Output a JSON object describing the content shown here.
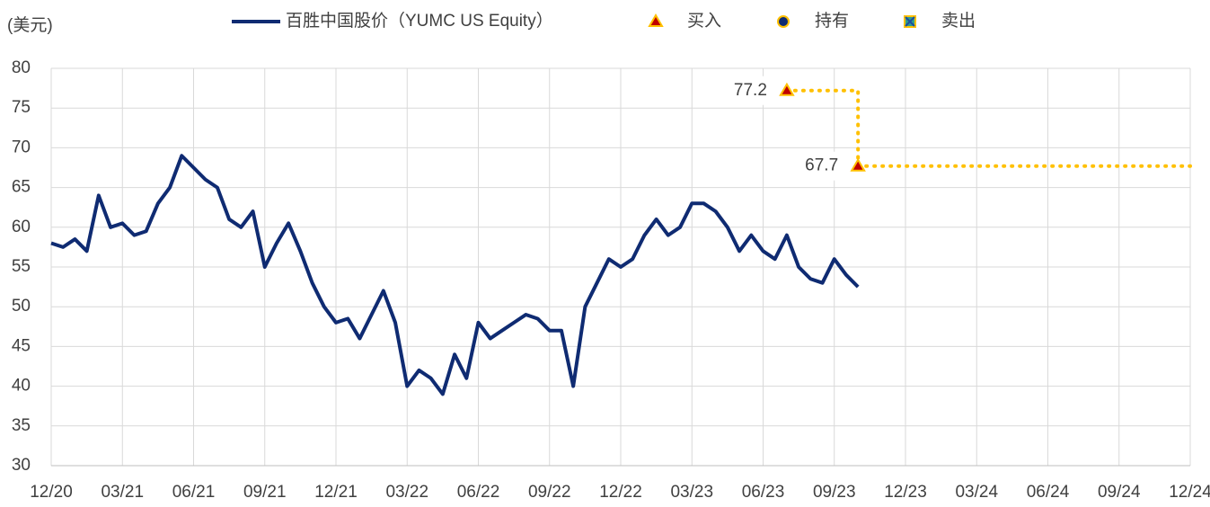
{
  "chart_data": {
    "type": "line",
    "unit_label": "(美元)",
    "categories": [
      "12/20",
      null,
      null,
      null,
      null,
      null,
      "03/21",
      null,
      null,
      null,
      null,
      null,
      "06/21",
      null,
      null,
      null,
      null,
      null,
      "09/21",
      null,
      null,
      null,
      null,
      null,
      "12/21",
      null,
      null,
      null,
      null,
      null,
      "03/22",
      null,
      null,
      null,
      null,
      null,
      "06/22",
      null,
      null,
      null,
      null,
      null,
      "09/22",
      null,
      null,
      null,
      null,
      null,
      "12/22",
      null,
      null,
      null,
      null,
      null,
      "03/23",
      null,
      null,
      null,
      null,
      null,
      "06/23",
      null,
      null,
      null,
      null,
      null,
      "09/23",
      null,
      null,
      null,
      null,
      null,
      "12/23",
      null,
      null,
      null,
      null,
      null,
      "03/24",
      null,
      null,
      null,
      null,
      null,
      "06/24",
      null,
      null,
      null,
      null,
      null,
      "09/24",
      null,
      null,
      null,
      null,
      null,
      "12/24"
    ],
    "series": [
      {
        "name": "百胜中国股价（YUMC US Equity）",
        "color": "#0f2b72",
        "values": [
          58,
          57.5,
          58.5,
          57,
          64,
          60,
          60.5,
          59,
          59.5,
          63,
          65,
          69,
          67.5,
          66,
          65,
          61,
          60,
          62,
          55,
          58,
          60.5,
          57,
          53,
          50,
          48,
          48.5,
          46,
          49,
          52,
          48,
          40,
          42,
          41,
          39,
          44,
          41,
          48,
          46,
          47,
          48,
          49,
          48.5,
          47,
          47,
          40,
          50,
          53,
          56,
          55,
          56,
          59,
          61,
          59,
          60,
          63,
          63,
          62,
          60,
          57,
          59,
          57,
          56,
          59,
          55,
          53.5,
          53,
          56,
          54,
          52.5,
          null,
          null,
          null,
          null,
          null,
          null,
          null,
          null,
          null,
          null,
          null,
          null,
          null,
          null,
          null,
          null,
          null,
          null,
          null,
          null,
          null,
          null,
          null,
          null,
          null,
          null,
          null,
          null
        ]
      },
      {
        "name": "买入",
        "color": "#c00000",
        "marker": "triangle",
        "values": [
          null,
          null,
          null,
          null,
          null,
          null,
          null,
          null,
          null,
          null,
          null,
          null,
          null,
          null,
          null,
          null,
          null,
          null,
          null,
          null,
          null,
          null,
          null,
          null,
          null,
          null,
          null,
          null,
          null,
          null,
          null,
          null,
          null,
          null,
          null,
          null,
          null,
          null,
          null,
          null,
          null,
          null,
          null,
          null,
          null,
          null,
          null,
          null,
          null,
          null,
          null,
          null,
          null,
          null,
          null,
          null,
          null,
          null,
          null,
          null,
          null,
          null,
          77.2,
          null,
          null,
          null,
          null,
          null,
          67.7,
          null,
          null,
          null,
          null,
          null,
          null,
          null,
          null,
          null,
          null,
          null,
          null,
          null,
          null,
          null,
          null,
          null,
          null,
          null,
          null,
          null,
          null,
          null,
          null,
          null,
          null,
          null,
          null
        ]
      },
      {
        "name": "持有",
        "color": "#0f2b72",
        "marker": "circle"
      },
      {
        "name": "卖出",
        "color": "#2e9e8f",
        "marker": "square"
      }
    ],
    "ylim": [
      30,
      80
    ],
    "yticks": [
      30,
      35,
      40,
      45,
      50,
      55,
      60,
      65,
      70,
      75,
      80
    ],
    "grid": true
  }
}
